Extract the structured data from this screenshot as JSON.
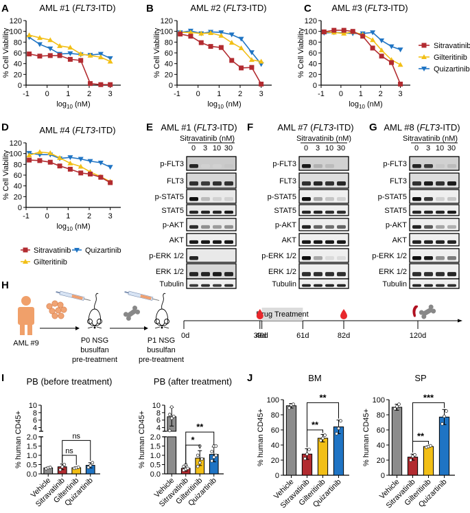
{
  "colors": {
    "sitravatinib": "#b22b30",
    "gilteritinib": "#f2bf16",
    "quizartinib": "#1f74c4",
    "vehicle": "#8c8c8c",
    "blood": "#e8282c",
    "spleen": "#b01020",
    "bone": "#888888",
    "human": "#f0a06a",
    "treatment_box": "#dcdcdc"
  },
  "legend": {
    "items": [
      {
        "name": "Sitravatinib",
        "key": "sitravatinib",
        "marker": "square"
      },
      {
        "name": "Gilteritinib",
        "key": "gilteritinib",
        "marker": "triangle-up"
      },
      {
        "name": "Quizartinib",
        "key": "quizartinib",
        "marker": "triangle-down"
      }
    ]
  },
  "chart_data": [
    {
      "panel": "A",
      "type": "line",
      "title": "AML #1 (FLT3-ITD)",
      "title_parts": [
        "AML #1 (",
        "FLT3",
        "-ITD)"
      ],
      "xlabel": "log10 (nM)",
      "ylabel": "% Cell Viability",
      "xlim": [
        -1,
        3.5
      ],
      "ylim": [
        0,
        120
      ],
      "xticks": [
        -1,
        0,
        1,
        2,
        3
      ],
      "yticks": [
        0,
        20,
        40,
        60,
        80,
        100,
        120
      ],
      "x": [
        -0.85,
        -0.35,
        0.15,
        0.6,
        1.1,
        1.6,
        2.05,
        2.55,
        3.0
      ],
      "series": [
        {
          "name": "Sitravatinib",
          "values": [
            58,
            54,
            55,
            55,
            48,
            46,
            3,
            1,
            1
          ]
        },
        {
          "name": "Gilteritinib",
          "values": [
            93,
            88,
            84,
            73,
            70,
            58,
            55,
            52,
            44
          ]
        },
        {
          "name": "Quizartinib",
          "values": [
            89,
            76,
            68,
            58,
            59,
            57,
            56,
            58,
            50
          ]
        }
      ]
    },
    {
      "panel": "B",
      "type": "line",
      "title": "AML #2 (FLT3-ITD)",
      "title_parts": [
        "AML #2 (",
        "FLT3",
        "-ITD)"
      ],
      "xlabel": "log10 (nM)",
      "ylabel": "% Cell Viability",
      "xlim": [
        -1,
        3.5
      ],
      "ylim": [
        0,
        120
      ],
      "xticks": [
        -1,
        0,
        1,
        2,
        3
      ],
      "yticks": [
        0,
        20,
        40,
        60,
        80,
        100,
        120
      ],
      "x": [
        -0.85,
        -0.35,
        0.15,
        0.6,
        1.1,
        1.6,
        2.05,
        2.55,
        3.0
      ],
      "series": [
        {
          "name": "Sitravatinib",
          "values": [
            95,
            91,
            79,
            72,
            70,
            46,
            32,
            33,
            2
          ]
        },
        {
          "name": "Gilteritinib",
          "values": [
            98,
            98,
            96,
            97,
            92,
            79,
            69,
            47,
            44
          ]
        },
        {
          "name": "Quizartinib",
          "values": [
            98,
            101,
            96,
            99,
            98,
            94,
            86,
            61,
            39
          ]
        }
      ]
    },
    {
      "panel": "C",
      "type": "line",
      "title": "AML #3 (FLT3-ITD)",
      "title_parts": [
        "AML #3 (",
        "FLT3",
        "-ITD)"
      ],
      "xlabel": "log10 (nM)",
      "ylabel": "% Cell Viability",
      "xlim": [
        -1,
        3.5
      ],
      "ylim": [
        0,
        120
      ],
      "xticks": [
        -1,
        0,
        1,
        2,
        3
      ],
      "yticks": [
        0,
        20,
        40,
        60,
        80,
        100,
        120
      ],
      "x": [
        -0.85,
        -0.35,
        0.15,
        0.6,
        1.1,
        1.6,
        2.05,
        2.55,
        3.0
      ],
      "legend": "right",
      "series": [
        {
          "name": "Sitravatinib",
          "values": [
            99,
            102,
            102,
            100,
            91,
            69,
            54,
            42,
            2
          ]
        },
        {
          "name": "Gilteritinib",
          "values": [
            99,
            98,
            96,
            99,
            94,
            84,
            65,
            47,
            38
          ]
        },
        {
          "name": "Quizartinib",
          "values": [
            97,
            98,
            97,
            96,
            96,
            98,
            83,
            72,
            66
          ]
        }
      ]
    },
    {
      "panel": "D",
      "type": "line",
      "title": "AML #4 (FLT3-ITD)",
      "title_parts": [
        "AML #4 (",
        "FLT3",
        "-ITD)"
      ],
      "xlabel": "log10 (nM)",
      "ylabel": "% Cell Viability",
      "xlim": [
        -1,
        3.5
      ],
      "ylim": [
        0,
        120
      ],
      "xticks": [
        -1,
        0,
        1,
        2,
        3
      ],
      "yticks": [
        0,
        20,
        40,
        60,
        80,
        100,
        120
      ],
      "x": [
        -0.85,
        -0.35,
        0.15,
        0.6,
        1.1,
        1.6,
        2.05,
        2.55,
        3.0
      ],
      "legend": "bottom",
      "series": [
        {
          "name": "Sitravatinib",
          "values": [
            88,
            87,
            84,
            77,
            71,
            64,
            62,
            56,
            46
          ]
        },
        {
          "name": "Gilteritinib",
          "values": [
            97,
            103,
            101,
            92,
            82,
            76,
            66,
            57,
            48
          ]
        },
        {
          "name": "Quizartinib",
          "values": [
            101,
            98,
            98,
            91,
            93,
            90,
            86,
            83,
            75
          ]
        }
      ]
    },
    {
      "panel": "I-left",
      "type": "bar",
      "title": "PB (before treatment)",
      "ylabel": "% human CD45+",
      "categories": [
        "Vehicle",
        "Sitravatinib",
        "Giltertinib",
        "Quizartinib"
      ],
      "values": [
        0.32,
        0.38,
        0.33,
        0.46
      ],
      "errors": [
        0.04,
        0.15,
        0.05,
        0.14
      ],
      "points": [
        [
          0.28,
          0.33,
          0.35
        ],
        [
          0.22,
          0.38,
          0.5
        ],
        [
          0.3,
          0.33,
          0.36
        ],
        [
          0.35,
          0.45,
          0.6
        ]
      ],
      "broken_axis": {
        "lower": [
          0,
          2.0
        ],
        "upper": [
          3,
          10
        ]
      },
      "yticks_lower": [
        0.0,
        0.5,
        1.0,
        1.5,
        2.0
      ],
      "yticks_upper": [
        4,
        6,
        8,
        10
      ],
      "significance": [
        {
          "from": 1,
          "to": 2,
          "label": "ns"
        },
        {
          "from": 1,
          "to": 3,
          "label": "ns"
        }
      ]
    },
    {
      "panel": "I-right",
      "type": "bar",
      "title": "PB (after treatment)",
      "ylabel": "% human CD45+",
      "categories": [
        "Vehicle",
        "Sitravatinib",
        "Gilteritinib",
        "Quizartinib"
      ],
      "values": [
        6.9,
        0.3,
        0.85,
        1.05
      ],
      "errors": [
        2.5,
        0.15,
        0.4,
        0.4
      ],
      "points": [
        [
          3.2,
          6.5,
          7.0,
          7.5,
          9.5
        ],
        [
          0.2,
          0.25,
          0.3,
          0.4,
          0.5
        ],
        [
          0.4,
          0.6,
          0.8,
          1.0,
          1.5
        ],
        [
          0.7,
          0.9,
          1.0,
          1.2,
          1.5,
          1.5
        ]
      ],
      "broken_axis": {
        "lower": [
          0,
          2.0
        ],
        "upper": [
          3,
          10
        ]
      },
      "yticks_lower": [
        0.0,
        0.5,
        1.0,
        1.5,
        2.0
      ],
      "yticks_upper": [
        4,
        6,
        8,
        10
      ],
      "significance": [
        {
          "from": 1,
          "to": 2,
          "label": "*"
        },
        {
          "from": 1,
          "to": 3,
          "label": "**"
        }
      ]
    },
    {
      "panel": "J-BM",
      "type": "bar",
      "title": "BM",
      "ylabel": "% human CD45+",
      "categories": [
        "Vehicle",
        "Sitravatinib",
        "Gilteritinib",
        "Quizartinib"
      ],
      "values": [
        92,
        28,
        49,
        64
      ],
      "errors": [
        3,
        7,
        5,
        9
      ],
      "points": [
        [
          89,
          93,
          94
        ],
        [
          22,
          28,
          34
        ],
        [
          46,
          49,
          53
        ],
        [
          55,
          62,
          72
        ]
      ],
      "ylim": [
        0,
        100
      ],
      "yticks": [
        0,
        20,
        40,
        60,
        80,
        100
      ],
      "significance": [
        {
          "from": 1,
          "to": 2,
          "label": "**"
        },
        {
          "from": 1,
          "to": 3,
          "label": "**"
        }
      ]
    },
    {
      "panel": "J-SP",
      "type": "bar",
      "title": "SP",
      "ylabel": "% human CD45+",
      "categories": [
        "Vehicle",
        "Sitravatinib",
        "Gilteritinib",
        "Quizartinib"
      ],
      "values": [
        90,
        24,
        38,
        77
      ],
      "errors": [
        4,
        4,
        1,
        10
      ],
      "points": [
        [
          88,
          91,
          94
        ],
        [
          20,
          25,
          27
        ],
        [
          37,
          38,
          39
        ],
        [
          68,
          78,
          85
        ]
      ],
      "ylim": [
        0,
        100
      ],
      "yticks": [
        0,
        20,
        40,
        60,
        80,
        100
      ],
      "significance": [
        {
          "from": 1,
          "to": 2,
          "label": "**"
        },
        {
          "from": 1,
          "to": 3,
          "label": "***"
        }
      ]
    }
  ],
  "blots": [
    {
      "panel": "E",
      "title_parts": [
        "AML #1 (",
        "FLT3",
        "-ITD)"
      ],
      "treatment": "Sitravatinib (nM)",
      "doses": [
        "0",
        "3",
        "10",
        "30"
      ],
      "rows": [
        {
          "label": "p-FLT3",
          "intensity": [
            0.9,
            0.1,
            0.1,
            0.15
          ],
          "bg": 0.35
        },
        {
          "label": "FLT3",
          "intensity": [
            0.85,
            0.8,
            0.85,
            0.85
          ],
          "bg": 0.25
        },
        {
          "label": "p-STAT5",
          "intensity": [
            1.0,
            0.2,
            0.1,
            0.1
          ],
          "bg": 0.1
        },
        {
          "label": "STAT5",
          "intensity": [
            0.9,
            0.9,
            0.9,
            0.95
          ],
          "bg": 0.1
        },
        {
          "label": "p-AKT",
          "intensity": [
            0.85,
            0.4,
            0.35,
            0.4
          ],
          "bg": 0.1
        },
        {
          "label": "AKT",
          "intensity": [
            0.95,
            0.95,
            0.95,
            0.95
          ],
          "bg": 0.05
        },
        {
          "label": "p-ERK 1/2",
          "intensity": [
            0.9,
            0.0,
            0.0,
            0.0
          ],
          "bg": 0.1
        },
        {
          "label": "ERK 1/2",
          "intensity": [
            0.9,
            0.9,
            0.95,
            0.9
          ],
          "bg": 0.25
        },
        {
          "label": "Tubulin",
          "intensity": [
            0.8,
            0.85,
            0.8,
            0.85
          ],
          "bg": 0.05
        }
      ]
    },
    {
      "panel": "F",
      "title_parts": [
        "AML #7 (",
        "FLT3",
        "-ITD)"
      ],
      "treatment": "Sitravatinib (nM)",
      "doses": [
        "0",
        "3",
        "10",
        "30"
      ],
      "rows": [
        {
          "label": "p-FLT3",
          "intensity": [
            0.95,
            0.25,
            0.2,
            0.1
          ],
          "bg": 0.3
        },
        {
          "label": "FLT3",
          "intensity": [
            0.85,
            0.9,
            0.85,
            0.9
          ],
          "bg": 0.2
        },
        {
          "label": "p-STAT5",
          "intensity": [
            1.0,
            0.3,
            0.15,
            0.1
          ],
          "bg": 0.05
        },
        {
          "label": "STAT5",
          "intensity": [
            0.9,
            0.9,
            0.85,
            0.85
          ],
          "bg": 0.05
        },
        {
          "label": "p-AKT",
          "intensity": [
            0.9,
            0.6,
            0.55,
            0.6
          ],
          "bg": 0.05
        },
        {
          "label": "AKT",
          "intensity": [
            0.95,
            0.95,
            0.95,
            0.95
          ],
          "bg": 0.05
        },
        {
          "label": "p-ERK 1/2",
          "intensity": [
            1.0,
            0.3,
            0.05,
            0.05
          ],
          "bg": 0.05
        },
        {
          "label": "ERK 1/2",
          "intensity": [
            0.85,
            0.85,
            0.85,
            0.85
          ],
          "bg": 0.05
        },
        {
          "label": "Tubulin",
          "intensity": [
            0.9,
            0.9,
            0.9,
            0.9
          ],
          "bg": 0.05
        }
      ]
    },
    {
      "panel": "G",
      "title_parts": [
        "AML #8 (",
        "FLT3",
        "-ITD)"
      ],
      "treatment": "Sitravatinib (nM)",
      "doses": [
        "0",
        "3",
        "10",
        "30"
      ],
      "rows": [
        {
          "label": "p-FLT3",
          "intensity": [
            0.9,
            0.8,
            0.15,
            0.2
          ],
          "bg": 0.3
        },
        {
          "label": "FLT3",
          "intensity": [
            0.85,
            0.95,
            0.85,
            0.95
          ],
          "bg": 0.2
        },
        {
          "label": "p-STAT5",
          "intensity": [
            1.0,
            0.8,
            0.1,
            0.15
          ],
          "bg": 0.05
        },
        {
          "label": "STAT5",
          "intensity": [
            0.9,
            0.9,
            0.9,
            0.95
          ],
          "bg": 0.05
        },
        {
          "label": "p-AKT",
          "intensity": [
            0.9,
            0.65,
            0.3,
            0.25
          ],
          "bg": 0.05
        },
        {
          "label": "AKT",
          "intensity": [
            0.9,
            0.9,
            0.9,
            0.9
          ],
          "bg": 0.05
        },
        {
          "label": "p-ERK 1/2",
          "intensity": [
            1.0,
            0.95,
            0.4,
            0.5
          ],
          "bg": 0.05
        },
        {
          "label": "ERK 1/2",
          "intensity": [
            0.85,
            0.85,
            0.85,
            0.9
          ],
          "bg": 0.05
        },
        {
          "label": "Tubulin",
          "intensity": [
            0.9,
            0.9,
            0.85,
            0.85
          ],
          "bg": 0.05
        }
      ]
    }
  ],
  "schematic": {
    "panel": "H",
    "patient_label": "AML #9",
    "p0_label": "P0 NSG",
    "p1_label": "P1 NSG",
    "pretreat_line1": "busulfan",
    "pretreat_line2": "pre-treatment",
    "timeline": {
      "ticks": [
        "0d",
        "39d",
        "40d",
        "61d",
        "82d",
        "120d"
      ],
      "tick_days": [
        0,
        39,
        40,
        61,
        82,
        120
      ],
      "treatment_label": "Drug Treatment",
      "treatment_days": [
        40,
        61
      ],
      "blood_draw_days": [
        39,
        82
      ],
      "harvest_day": 120
    }
  },
  "panel_letters": {
    "A": "A",
    "B": "B",
    "C": "C",
    "D": "D",
    "E": "E",
    "F": "F",
    "G": "G",
    "H": "H",
    "I": "I",
    "J": "J"
  }
}
